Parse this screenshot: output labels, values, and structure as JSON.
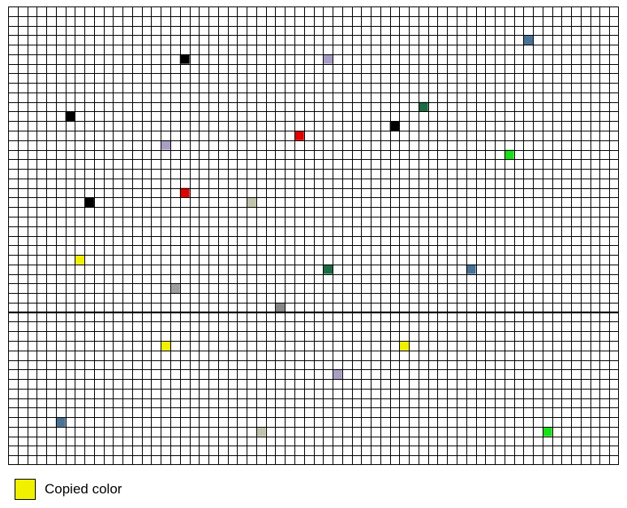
{
  "grid": {
    "columns": 64,
    "rows": 48,
    "divider_after_row": 32,
    "cell_border_color": "#000000",
    "background_color": "#ffffff"
  },
  "colored_cells": [
    {
      "col": 54,
      "row": 3,
      "color": "#4a7396"
    },
    {
      "col": 18,
      "row": 5,
      "color": "#000000"
    },
    {
      "col": 33,
      "row": 5,
      "color": "#a99ec4"
    },
    {
      "col": 43,
      "row": 10,
      "color": "#1c6b43"
    },
    {
      "col": 6,
      "row": 11,
      "color": "#000000"
    },
    {
      "col": 40,
      "row": 12,
      "color": "#000000"
    },
    {
      "col": 30,
      "row": 13,
      "color": "#e00000"
    },
    {
      "col": 16,
      "row": 14,
      "color": "#a99ec4"
    },
    {
      "col": 52,
      "row": 15,
      "color": "#19e019"
    },
    {
      "col": 18,
      "row": 19,
      "color": "#e00000"
    },
    {
      "col": 8,
      "row": 20,
      "color": "#000000"
    },
    {
      "col": 25,
      "row": 20,
      "color": "#c2c4ab"
    },
    {
      "col": 7,
      "row": 26,
      "color": "#f0f000"
    },
    {
      "col": 33,
      "row": 27,
      "color": "#1c6b43"
    },
    {
      "col": 48,
      "row": 27,
      "color": "#4a7396"
    },
    {
      "col": 17,
      "row": 29,
      "color": "#a0a0a0"
    },
    {
      "col": 28,
      "row": 31,
      "color": "#888888"
    },
    {
      "col": 16,
      "row": 35,
      "color": "#f0f000"
    },
    {
      "col": 41,
      "row": 35,
      "color": "#f0f000"
    },
    {
      "col": 34,
      "row": 38,
      "color": "#a99ec4"
    },
    {
      "col": 5,
      "row": 43,
      "color": "#4a7396"
    },
    {
      "col": 26,
      "row": 44,
      "color": "#c2c4ab"
    },
    {
      "col": 56,
      "row": 44,
      "color": "#19e019"
    }
  ],
  "legend": {
    "swatch_color": "#f0f000",
    "label": "Copied color"
  }
}
